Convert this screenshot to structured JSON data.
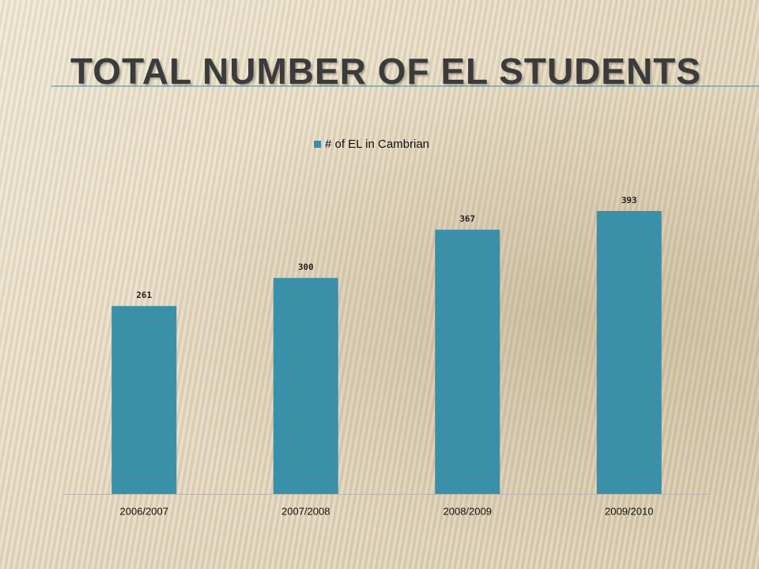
{
  "chart_data": {
    "type": "bar",
    "title": "TOTAL NUMBER OF EL STUDENTS",
    "categories": [
      "2006/2007",
      "2007/2008",
      "2008/2009",
      "2009/2010"
    ],
    "series": [
      {
        "name": "# of EL in Cambrian",
        "color": "#3a8fa9",
        "values": [
          261,
          300,
          367,
          393
        ]
      }
    ]
  }
}
